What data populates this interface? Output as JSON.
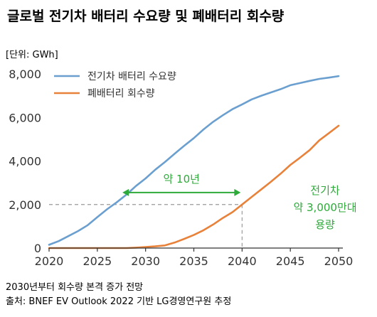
{
  "chart_data": {
    "type": "line",
    "title": "글로벌 전기차 배터리 수요량 및 폐배터리 회수량",
    "unit_label": "[단위: GWh]",
    "xlim": [
      2020,
      2050
    ],
    "ylim": [
      0,
      8000
    ],
    "x_ticks": [
      2020,
      2025,
      2030,
      2035,
      2040,
      2045,
      2050
    ],
    "y_ticks": [
      0,
      2000,
      4000,
      6000,
      8000
    ],
    "y_tick_labels": [
      "0",
      "2,000",
      "4,000",
      "6,000",
      "8,000"
    ],
    "grid": false,
    "legend_position": "top-left",
    "series": [
      {
        "name": "전기차 배터리 수요량",
        "color": "#6a9fcf",
        "points": [
          [
            2020,
            150
          ],
          [
            2021,
            320
          ],
          [
            2022,
            550
          ],
          [
            2023,
            780
          ],
          [
            2024,
            1050
          ],
          [
            2025,
            1420
          ],
          [
            2026,
            1780
          ],
          [
            2027,
            2100
          ],
          [
            2028,
            2450
          ],
          [
            2029,
            2850
          ],
          [
            2030,
            3200
          ],
          [
            2031,
            3600
          ],
          [
            2032,
            3950
          ],
          [
            2033,
            4330
          ],
          [
            2034,
            4700
          ],
          [
            2035,
            5050
          ],
          [
            2036,
            5450
          ],
          [
            2037,
            5800
          ],
          [
            2038,
            6100
          ],
          [
            2039,
            6380
          ],
          [
            2040,
            6600
          ],
          [
            2041,
            6830
          ],
          [
            2042,
            7000
          ],
          [
            2043,
            7150
          ],
          [
            2044,
            7300
          ],
          [
            2045,
            7480
          ],
          [
            2046,
            7580
          ],
          [
            2047,
            7680
          ],
          [
            2048,
            7770
          ],
          [
            2049,
            7830
          ],
          [
            2050,
            7900
          ]
        ]
      },
      {
        "name": "폐배터리 회수량",
        "color": "#e8823a",
        "points": [
          [
            2020,
            0
          ],
          [
            2024,
            0
          ],
          [
            2028,
            0
          ],
          [
            2029,
            20
          ],
          [
            2030,
            50
          ],
          [
            2031,
            80
          ],
          [
            2032,
            120
          ],
          [
            2033,
            250
          ],
          [
            2034,
            420
          ],
          [
            2035,
            600
          ],
          [
            2036,
            820
          ],
          [
            2037,
            1080
          ],
          [
            2038,
            1380
          ],
          [
            2039,
            1650
          ],
          [
            2040,
            2000
          ],
          [
            2041,
            2350
          ],
          [
            2042,
            2700
          ],
          [
            2043,
            3050
          ],
          [
            2044,
            3420
          ],
          [
            2045,
            3820
          ],
          [
            2046,
            4150
          ],
          [
            2047,
            4500
          ],
          [
            2048,
            4950
          ],
          [
            2049,
            5280
          ],
          [
            2050,
            5620
          ]
        ]
      }
    ],
    "reference": {
      "x": 2040,
      "y": 2000,
      "color": "#999999"
    },
    "annotations": {
      "gap_label": "약 10년",
      "gap_from_x": 2027.6,
      "gap_to_x": 2040,
      "gap_y": 2550,
      "callout_lines": [
        "전기차",
        "약 3,000만대",
        "용량"
      ],
      "color": "#2eaa3a"
    }
  },
  "footnotes": [
    "2030년부터 회수량 본격 증가 전망",
    "출처: BNEF EV Outlook 2022 기반 LG경영연구원 추정"
  ],
  "colors": {
    "title": "#2eaa3a",
    "axis": "#333333",
    "text": "#333333"
  }
}
